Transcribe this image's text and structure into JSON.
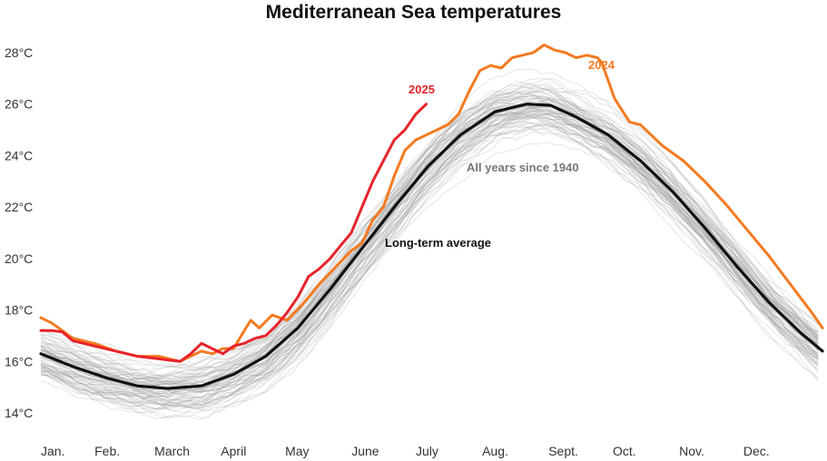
{
  "chart_data": {
    "type": "line",
    "title": "Mediterranean Sea temperatures",
    "xlabel": "",
    "ylabel": "",
    "ylim": [
      13.5,
      28.6
    ],
    "xlim": [
      0,
      365
    ],
    "y_ticks": [
      14,
      16,
      18,
      20,
      22,
      24,
      26,
      28
    ],
    "y_tick_labels": [
      "14°C",
      "16°C",
      "18°C",
      "20°C",
      "22°C",
      "24°C",
      "26°C",
      "28°C"
    ],
    "x_tick_days": [
      0,
      31,
      59,
      90,
      120,
      151,
      181,
      212,
      243,
      273,
      304,
      334
    ],
    "x_tick_labels": [
      "Jan.",
      "Feb.",
      "March",
      "April",
      "May",
      "June",
      "July",
      "Aug.",
      "Sept.",
      "Oct.",
      "Nov.",
      "Dec."
    ],
    "grid": false,
    "annotations": [
      {
        "text": "2025",
        "color": "#e8232a",
        "series": "2025"
      },
      {
        "text": "2024",
        "color": "#f47a20",
        "series": "2024"
      },
      {
        "text": "All years since 1940",
        "color": "#777777",
        "series": "All years since 1940"
      },
      {
        "text": "Long-term average",
        "color": "#111111",
        "series": "Long-term average"
      }
    ],
    "series": [
      {
        "name": "Long-term average",
        "color": "#111111",
        "x": [
          0,
          15,
          31,
          45,
          59,
          75,
          90,
          105,
          120,
          135,
          151,
          166,
          181,
          196,
          212,
          227,
          238,
          250,
          265,
          280,
          295,
          310,
          325,
          340,
          355,
          365
        ],
        "values": [
          16.3,
          15.8,
          15.35,
          15.05,
          14.95,
          15.05,
          15.5,
          16.2,
          17.3,
          18.8,
          20.5,
          22.1,
          23.6,
          24.8,
          25.7,
          26.0,
          25.95,
          25.5,
          24.8,
          23.8,
          22.6,
          21.2,
          19.7,
          18.3,
          17.1,
          16.4
        ]
      },
      {
        "name": "2024",
        "color": "#f47a20",
        "x": [
          0,
          5,
          15,
          25,
          35,
          45,
          55,
          65,
          75,
          80,
          85,
          90,
          95,
          98,
          102,
          108,
          115,
          122,
          130,
          138,
          145,
          150,
          155,
          160,
          165,
          170,
          175,
          180,
          185,
          190,
          195,
          200,
          205,
          210,
          215,
          220,
          225,
          230,
          235,
          240,
          245,
          250,
          255,
          260,
          262,
          268,
          275,
          280,
          285,
          290,
          300,
          310,
          320,
          330,
          340,
          350,
          360,
          365
        ],
        "values": [
          17.7,
          17.5,
          16.9,
          16.7,
          16.4,
          16.2,
          16.2,
          16.0,
          16.4,
          16.3,
          16.5,
          16.5,
          17.2,
          17.6,
          17.3,
          17.8,
          17.6,
          18.2,
          19.0,
          19.7,
          20.3,
          20.6,
          21.5,
          22.0,
          23.2,
          24.2,
          24.6,
          24.8,
          25.0,
          25.2,
          25.6,
          26.5,
          27.3,
          27.5,
          27.4,
          27.8,
          27.9,
          28.0,
          28.3,
          28.1,
          28.0,
          27.8,
          27.9,
          27.8,
          27.6,
          26.2,
          25.3,
          25.2,
          24.8,
          24.4,
          23.8,
          23.0,
          22.1,
          21.1,
          20.1,
          19.0,
          17.9,
          17.3
        ]
      },
      {
        "name": "2025",
        "color": "#e8232a",
        "x": [
          0,
          5,
          10,
          15,
          20,
          25,
          35,
          45,
          55,
          60,
          65,
          70,
          75,
          80,
          85,
          90,
          95,
          100,
          105,
          110,
          115,
          120,
          125,
          130,
          135,
          140,
          145,
          150,
          155,
          160,
          165,
          170,
          175,
          180
        ],
        "values": [
          17.2,
          17.2,
          17.15,
          16.8,
          16.7,
          16.6,
          16.4,
          16.2,
          16.1,
          16.05,
          16.0,
          16.3,
          16.7,
          16.5,
          16.3,
          16.6,
          16.7,
          16.9,
          17.0,
          17.4,
          17.9,
          18.5,
          19.3,
          19.6,
          20.0,
          20.5,
          21.0,
          22.0,
          23.0,
          23.8,
          24.6,
          25.0,
          25.6,
          26.0
        ]
      }
    ],
    "background_series": {
      "name": "All years since 1940",
      "color": "#9a9a9a",
      "count": 85,
      "description": "One thin grey line per year since 1940, spread around the long-term average (roughly ±1.5°C)"
    }
  }
}
